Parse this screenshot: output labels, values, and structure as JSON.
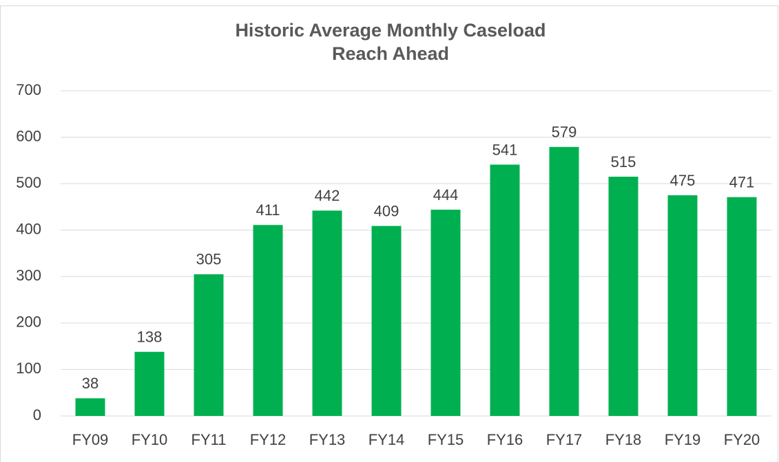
{
  "chart_data": {
    "type": "bar",
    "title": "Historic Average Monthly Caseload",
    "subtitle": "Reach Ahead",
    "categories": [
      "FY09",
      "FY10",
      "FY11",
      "FY12",
      "FY13",
      "FY14",
      "FY15",
      "FY16",
      "FY17",
      "FY18",
      "FY19",
      "FY20"
    ],
    "values": [
      38,
      138,
      305,
      411,
      442,
      409,
      444,
      541,
      579,
      515,
      475,
      471
    ],
    "color": "#00b050",
    "ylim": [
      0,
      700
    ],
    "yticks": [
      0,
      100,
      200,
      300,
      400,
      500,
      600,
      700
    ],
    "grid": true
  }
}
